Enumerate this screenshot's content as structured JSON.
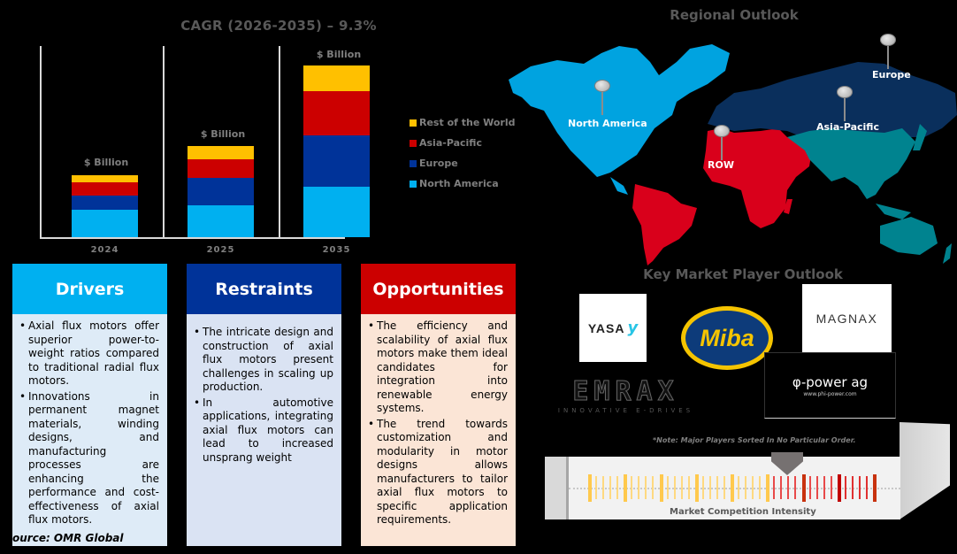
{
  "chart_data": {
    "type": "bar",
    "stacked": true,
    "title": "CAGR (2026-2035) – 9.3%",
    "categories": [
      "2024",
      "2025",
      "2035"
    ],
    "series": [
      {
        "name": "North America",
        "color": "#00b0f0",
        "values": [
          31,
          36,
          57
        ]
      },
      {
        "name": "Europe",
        "color": "#003399",
        "values": [
          16,
          31,
          58
        ]
      },
      {
        "name": "Asia-Pacific",
        "color": "#cc0000",
        "values": [
          15,
          21,
          50
        ]
      },
      {
        "name": "Rest of the World",
        "color": "#ffc000",
        "values": [
          8,
          15,
          29
        ]
      }
    ],
    "bar_labels": [
      "$ Billion",
      "$ Billion",
      "$ Billion"
    ],
    "xlabel": "",
    "ylabel": "",
    "units": "relative (pixel-estimated, no axis shown)",
    "legend_position": "right",
    "legend_order": [
      "Rest of the World",
      "Asia-Pacific",
      "Europe",
      "North America"
    ],
    "grid": false
  },
  "chart": {
    "title": "CAGR (2026-2035) – 9.3%",
    "years": [
      "2024",
      "2025",
      "2035"
    ],
    "bar_label": "$ Billion",
    "legend": [
      {
        "label": "Rest of the World",
        "color": "#ffc000"
      },
      {
        "label": "Asia-Pacific",
        "color": "#cc0000"
      },
      {
        "label": "Europe",
        "color": "#003399"
      },
      {
        "label": "North America",
        "color": "#00b0f0"
      }
    ]
  },
  "map": {
    "title": "Regional Outlook",
    "regions": [
      {
        "label": "North America",
        "color": "#00a3e0"
      },
      {
        "label": "Europe",
        "color": "#0a2f5c"
      },
      {
        "label": "Asia-Pacific",
        "color": "#00838f"
      },
      {
        "label": "ROW",
        "color": "#d9001b"
      }
    ]
  },
  "boxes": {
    "drivers": {
      "title": "Drivers",
      "header_color": "#00b0f0",
      "body_color": "#deebf7",
      "items": [
        "Axial flux motors offer superior power-to-weight ratios compared to traditional radial flux motors.",
        "Innovations in permanent magnet materials, winding designs, and manufacturing processes are enhancing the performance and cost-effectiveness of axial flux motors."
      ]
    },
    "restraints": {
      "title": "Restraints",
      "header_color": "#003399",
      "body_color": "#dae3f3",
      "items": [
        "The intricate design and construction of axial flux motors present challenges in scaling up production.",
        "In automotive applications, integrating axial flux motors can lead to increased unsprang weight"
      ]
    },
    "opportunities": {
      "title": "Opportunities",
      "header_color": "#cc0000",
      "body_color": "#fbe5d6",
      "items": [
        "The efficiency and scalability of axial flux motors make them ideal candidates for integration into renewable energy systems.",
        "The trend towards customization and modularity in motor designs allows manufacturers to tailor axial flux motors to specific application requirements."
      ]
    }
  },
  "source": "ource: OMR Global",
  "players": {
    "title": "Key Market Player Outlook",
    "logos": {
      "yasa": "YASA",
      "yasa_mark": "y",
      "miba": "Miba",
      "magnax": "MAGNAX",
      "emrax": "EMRAX",
      "emrax_sub": "INNOVATIVE E-DRIVES",
      "phi": "φ-power ag",
      "phi_url": "www.phi-power.com"
    },
    "note": "*Note: Major Players Sorted In No Particular Order.",
    "intensity_label": "Market Competition Intensity"
  }
}
